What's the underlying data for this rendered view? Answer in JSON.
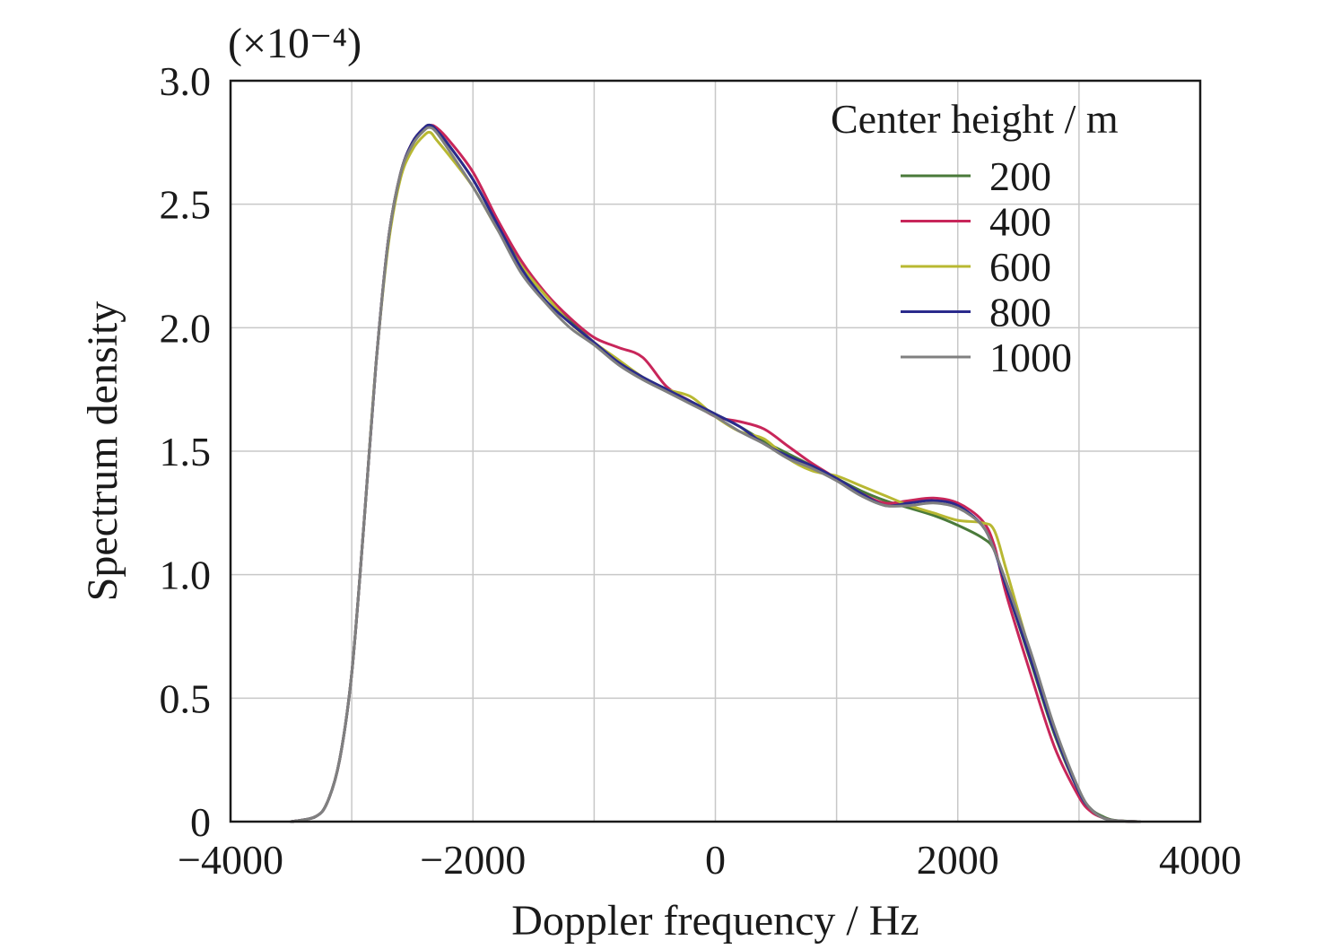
{
  "chart_data": {
    "type": "line",
    "xlabel": "Doppler frequency / Hz",
    "ylabel": "Spectrum density",
    "y_multiplier_label": "(×10⁻⁴)",
    "xlim": [
      -4000,
      4000
    ],
    "ylim": [
      0,
      3.0
    ],
    "x_ticks": [
      -4000,
      -2000,
      0,
      2000,
      4000
    ],
    "x_tick_labels": [
      "−4000",
      "−2000",
      "0",
      "2000",
      "4000"
    ],
    "y_ticks": [
      0,
      0.5,
      1.0,
      1.5,
      2.0,
      2.5,
      3.0
    ],
    "y_tick_labels": [
      "0",
      "0.5",
      "1.0",
      "1.5",
      "2.0",
      "2.5",
      "3.0"
    ],
    "grid": true,
    "legend": {
      "title": "Center height / m",
      "placement": "top-right"
    },
    "series": [
      {
        "name": "200",
        "color": "#4a7a3a",
        "x": [
          -3500,
          -3300,
          -3200,
          -3100,
          -3000,
          -2900,
          -2800,
          -2700,
          -2600,
          -2500,
          -2400,
          -2350,
          -2300,
          -2200,
          -2000,
          -1800,
          -1600,
          -1400,
          -1200,
          -1000,
          -800,
          -600,
          -400,
          -200,
          0,
          200,
          400,
          600,
          800,
          1000,
          1200,
          1400,
          1600,
          1800,
          2000,
          2200,
          2300,
          2400,
          2600,
          2800,
          3000,
          3100,
          3200,
          3300,
          3500
        ],
        "y": [
          0,
          0.02,
          0.08,
          0.25,
          0.6,
          1.2,
          1.85,
          2.35,
          2.62,
          2.75,
          2.81,
          2.82,
          2.8,
          2.74,
          2.6,
          2.42,
          2.25,
          2.13,
          2.03,
          1.94,
          1.86,
          1.8,
          1.75,
          1.7,
          1.65,
          1.6,
          1.54,
          1.49,
          1.44,
          1.39,
          1.34,
          1.3,
          1.27,
          1.24,
          1.2,
          1.15,
          1.1,
          0.95,
          0.65,
          0.35,
          0.12,
          0.05,
          0.02,
          0.005,
          0
        ]
      },
      {
        "name": "400",
        "color": "#c8265a",
        "x": [
          -3500,
          -3300,
          -3200,
          -3100,
          -3000,
          -2900,
          -2800,
          -2700,
          -2600,
          -2500,
          -2400,
          -2350,
          -2300,
          -2200,
          -2000,
          -1800,
          -1600,
          -1400,
          -1200,
          -1000,
          -800,
          -600,
          -400,
          -200,
          0,
          200,
          400,
          600,
          800,
          1000,
          1200,
          1400,
          1600,
          1800,
          2000,
          2200,
          2300,
          2400,
          2600,
          2800,
          3000,
          3100,
          3200,
          3300,
          3500
        ],
        "y": [
          0,
          0.02,
          0.08,
          0.25,
          0.6,
          1.2,
          1.85,
          2.35,
          2.62,
          2.75,
          2.81,
          2.82,
          2.81,
          2.76,
          2.63,
          2.44,
          2.27,
          2.14,
          2.04,
          1.96,
          1.92,
          1.88,
          1.76,
          1.7,
          1.64,
          1.62,
          1.59,
          1.52,
          1.45,
          1.39,
          1.33,
          1.29,
          1.3,
          1.31,
          1.29,
          1.22,
          1.12,
          0.92,
          0.6,
          0.3,
          0.1,
          0.04,
          0.015,
          0.004,
          0
        ]
      },
      {
        "name": "600",
        "color": "#b8b832",
        "x": [
          -3500,
          -3300,
          -3200,
          -3100,
          -3000,
          -2900,
          -2800,
          -2700,
          -2600,
          -2500,
          -2400,
          -2350,
          -2300,
          -2200,
          -2000,
          -1800,
          -1600,
          -1400,
          -1200,
          -1000,
          -800,
          -600,
          -400,
          -200,
          0,
          200,
          400,
          600,
          800,
          1000,
          1200,
          1400,
          1600,
          1800,
          2000,
          2200,
          2300,
          2400,
          2600,
          2800,
          3000,
          3100,
          3200,
          3300,
          3500
        ],
        "y": [
          0,
          0.02,
          0.08,
          0.25,
          0.6,
          1.2,
          1.85,
          2.33,
          2.6,
          2.72,
          2.78,
          2.79,
          2.76,
          2.7,
          2.57,
          2.4,
          2.25,
          2.13,
          2.02,
          1.94,
          1.87,
          1.8,
          1.75,
          1.72,
          1.64,
          1.58,
          1.55,
          1.47,
          1.42,
          1.4,
          1.36,
          1.32,
          1.28,
          1.25,
          1.22,
          1.21,
          1.18,
          1.02,
          0.68,
          0.36,
          0.12,
          0.05,
          0.015,
          0.004,
          0
        ]
      },
      {
        "name": "800",
        "color": "#2a2a8c",
        "x": [
          -3500,
          -3300,
          -3200,
          -3100,
          -3000,
          -2900,
          -2800,
          -2700,
          -2600,
          -2500,
          -2400,
          -2350,
          -2300,
          -2200,
          -2000,
          -1800,
          -1600,
          -1400,
          -1200,
          -1000,
          -800,
          -600,
          -400,
          -200,
          0,
          200,
          400,
          600,
          800,
          1000,
          1200,
          1400,
          1600,
          1800,
          2000,
          2200,
          2300,
          2400,
          2600,
          2800,
          3000,
          3100,
          3200,
          3300,
          3500
        ],
        "y": [
          0,
          0.02,
          0.08,
          0.25,
          0.6,
          1.2,
          1.85,
          2.35,
          2.62,
          2.75,
          2.81,
          2.82,
          2.8,
          2.74,
          2.6,
          2.42,
          2.24,
          2.11,
          2.02,
          1.94,
          1.86,
          1.8,
          1.75,
          1.7,
          1.65,
          1.6,
          1.53,
          1.48,
          1.44,
          1.39,
          1.33,
          1.28,
          1.29,
          1.3,
          1.28,
          1.2,
          1.1,
          0.95,
          0.66,
          0.36,
          0.12,
          0.05,
          0.015,
          0.004,
          0
        ]
      },
      {
        "name": "1000",
        "color": "#808080",
        "x": [
          -3500,
          -3300,
          -3200,
          -3100,
          -3000,
          -2900,
          -2800,
          -2700,
          -2600,
          -2500,
          -2400,
          -2350,
          -2300,
          -2200,
          -2000,
          -1800,
          -1600,
          -1400,
          -1200,
          -1000,
          -800,
          -600,
          -400,
          -200,
          0,
          200,
          400,
          600,
          800,
          1000,
          1200,
          1400,
          1600,
          1800,
          2000,
          2200,
          2300,
          2400,
          2600,
          2800,
          3000,
          3100,
          3200,
          3300,
          3500
        ],
        "y": [
          0,
          0.02,
          0.08,
          0.25,
          0.6,
          1.2,
          1.85,
          2.35,
          2.62,
          2.74,
          2.8,
          2.81,
          2.79,
          2.72,
          2.57,
          2.4,
          2.22,
          2.1,
          2.0,
          1.93,
          1.85,
          1.79,
          1.74,
          1.69,
          1.64,
          1.58,
          1.53,
          1.47,
          1.43,
          1.38,
          1.32,
          1.28,
          1.28,
          1.29,
          1.27,
          1.2,
          1.1,
          0.97,
          0.69,
          0.38,
          0.13,
          0.05,
          0.015,
          0.004,
          0
        ]
      }
    ]
  }
}
